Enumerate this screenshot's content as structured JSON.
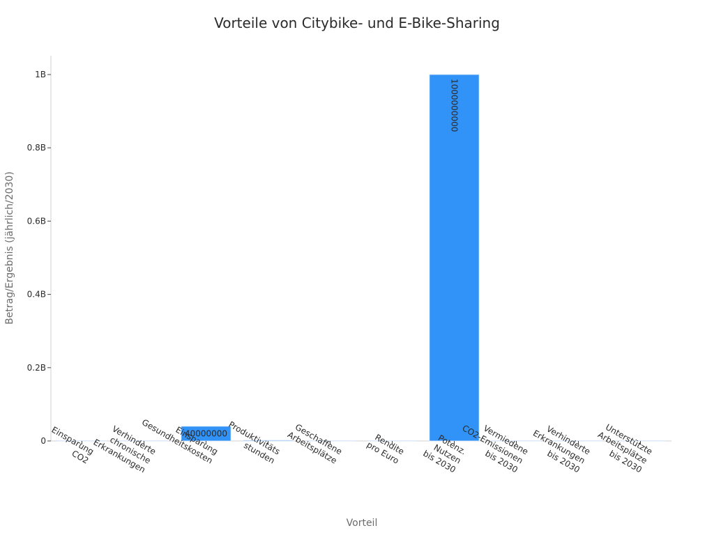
{
  "chart_data": {
    "type": "bar",
    "title": "Vorteile von Citybike- und E-Bike-Sharing",
    "xlabel": "Vorteil",
    "ylabel": "Betrag/Ergebnis (jährlich/2030)",
    "ylim": [
      0,
      1000000000
    ],
    "yticks": [
      {
        "value": 0,
        "label": "0"
      },
      {
        "value": 200000000,
        "label": "0.2B"
      },
      {
        "value": 400000000,
        "label": "0.4B"
      },
      {
        "value": 600000000,
        "label": "0.6B"
      },
      {
        "value": 800000000,
        "label": "0.8B"
      },
      {
        "value": 1000000000,
        "label": "1B"
      }
    ],
    "categories": [
      [
        "Einsparung",
        "CO2"
      ],
      [
        "Verhinderte",
        "chronische",
        "Erkrankungen"
      ],
      [
        "Einsparung",
        "Gesundheitskosten"
      ],
      [
        "Produktivitäts",
        "stunden"
      ],
      [
        "Geschaffene",
        "Arbeitsplätze"
      ],
      [
        "Rendite",
        "pro Euro"
      ],
      [
        "Potenz.",
        "Nutzen",
        "bis 2030"
      ],
      [
        "Vermiedene",
        "CO2-Emissionen",
        "bis 2030"
      ],
      [
        "Verhinderte",
        "Erkrankungen",
        "bis 2030"
      ],
      [
        "Unterstützte",
        "Arbeitsplätze",
        "bis 2030"
      ]
    ],
    "values": [
      0,
      0,
      40000000,
      1000000,
      0,
      0,
      1000000000,
      0,
      0,
      0
    ],
    "data_labels": [
      "",
      "",
      "40000000",
      "",
      "",
      "",
      "1000000000",
      "",
      "",
      ""
    ],
    "bar_color": "#3192f7",
    "grid": false,
    "legend": "none"
  }
}
